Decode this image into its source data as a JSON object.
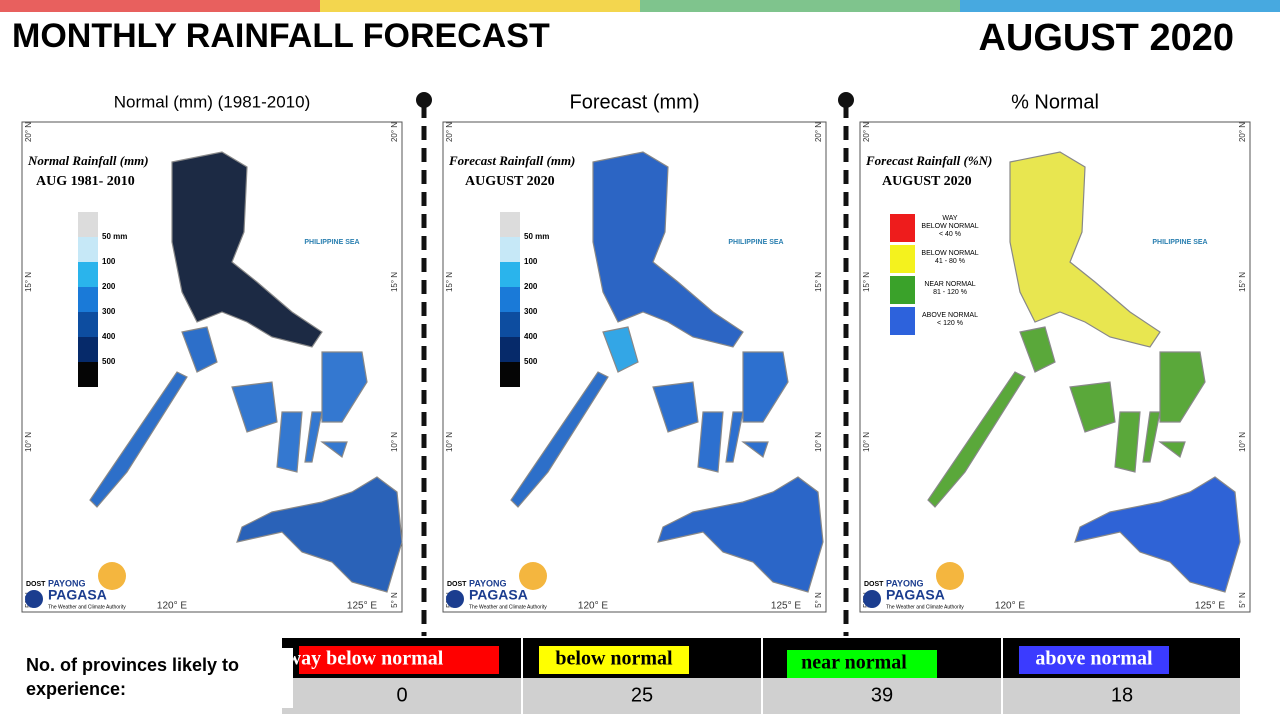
{
  "header": {
    "title": "MONTHLY RAINFALL FORECAST",
    "date": "AUGUST 2020"
  },
  "map_labels": {
    "lat": [
      "20° N",
      "15° N",
      "10° N",
      "5° N"
    ],
    "lon": [
      "120° E",
      "125° E"
    ],
    "sea": "PHILIPPINE SEA",
    "logo": {
      "agency": "DOST",
      "brand_top": "PAYONG",
      "brand": "PAGASA",
      "tagline": "The Weather and Climate Authority"
    }
  },
  "panels": [
    {
      "heading": "Normal (mm) (1981-2010)",
      "map_title": "Normal Rainfall (mm)",
      "map_subtitle": "AUG 1981- 2010",
      "legend": [
        "50 mm",
        "100",
        "200",
        "300",
        "400",
        "500"
      ]
    },
    {
      "heading": "Forecast (mm)",
      "map_title": "Forecast Rainfall (mm)",
      "map_subtitle": "AUGUST 2020",
      "legend": [
        "50 mm",
        "100",
        "200",
        "300",
        "400",
        "500"
      ]
    },
    {
      "heading": "% Normal",
      "map_title": "Forecast Rainfall (%N)",
      "map_subtitle": "AUGUST 2020",
      "legend": [
        [
          "WAY",
          "BELOW NORMAL",
          "< 40 %"
        ],
        [
          "BELOW NORMAL",
          "41 - 80 %"
        ],
        [
          "NEAR NORMAL",
          "81 - 120 %"
        ],
        [
          "ABOVE NORMAL",
          "< 120 %"
        ]
      ]
    }
  ],
  "table": {
    "label": "No. of provinces likely to experience:",
    "columns": [
      "way below normal",
      "below normal",
      "near normal",
      "above normal"
    ],
    "counts": [
      0,
      25,
      39,
      18
    ]
  }
}
